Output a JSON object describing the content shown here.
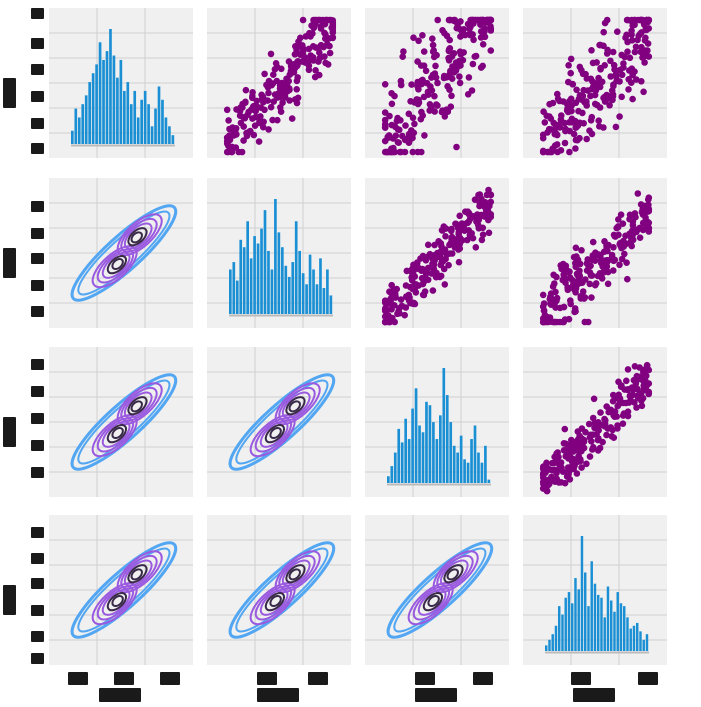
{
  "chart_data": {
    "type": "pairplot",
    "layout": "4x4",
    "upper": "scatter",
    "diagonal": "histogram",
    "lower": "kde",
    "colors": {
      "panel_bg": "#f0f0f0",
      "grid": "#d0d0d0",
      "scatter": "#800080",
      "hist": "#1a8fd4",
      "kde_light": "#52a6f2",
      "kde_mid": "#9a5ae0",
      "kde_dark": "#3a2a4a"
    },
    "variables": [
      "",
      "",
      "",
      ""
    ],
    "x_ticks": [
      [
        "",
        "",
        ""
      ],
      [
        "",
        ""
      ],
      [
        "",
        ""
      ],
      [
        "",
        ""
      ]
    ],
    "y_ticks": [
      [
        "",
        "",
        "",
        "",
        "",
        ""
      ],
      [
        "",
        "",
        "",
        "",
        ""
      ],
      [
        "",
        "",
        "",
        "",
        ""
      ],
      [
        "",
        "",
        "",
        "",
        "",
        ""
      ]
    ],
    "histograms": [
      [
        3,
        8,
        6,
        9,
        11,
        14,
        16,
        18,
        23,
        19,
        21,
        26,
        20,
        15,
        19,
        12,
        14,
        9,
        12,
        6,
        10,
        12,
        9,
        4,
        8,
        13,
        10,
        6,
        4,
        2
      ],
      [
        12,
        14,
        9,
        20,
        18,
        25,
        15,
        21,
        19,
        23,
        28,
        17,
        12,
        31,
        22,
        18,
        13,
        10,
        14,
        25,
        17,
        11,
        8,
        16,
        12,
        8,
        15,
        7,
        12,
        5
      ],
      [
        2,
        5,
        9,
        16,
        12,
        19,
        13,
        22,
        28,
        17,
        15,
        24,
        23,
        18,
        13,
        20,
        34,
        26,
        18,
        11,
        9,
        14,
        7,
        6,
        13,
        17,
        9,
        6,
        11,
        1
      ],
      [
        2,
        4,
        6,
        9,
        16,
        13,
        19,
        21,
        17,
        26,
        22,
        41,
        28,
        16,
        32,
        24,
        20,
        19,
        12,
        23,
        18,
        14,
        21,
        17,
        16,
        12,
        8,
        9,
        10,
        7,
        4,
        6
      ]
    ],
    "scatter_trend": {
      "0-1": {
        "slope": 1.05,
        "spread": 0.14
      },
      "0-2": {
        "slope": 1.15,
        "spread": 0.22
      },
      "0-3": {
        "slope": 0.95,
        "spread": 0.2
      },
      "1-2": {
        "slope": 0.95,
        "spread": 0.1
      },
      "1-3": {
        "slope": 0.85,
        "spread": 0.13
      },
      "2-3": {
        "slope": 0.9,
        "spread": 0.09
      }
    }
  }
}
